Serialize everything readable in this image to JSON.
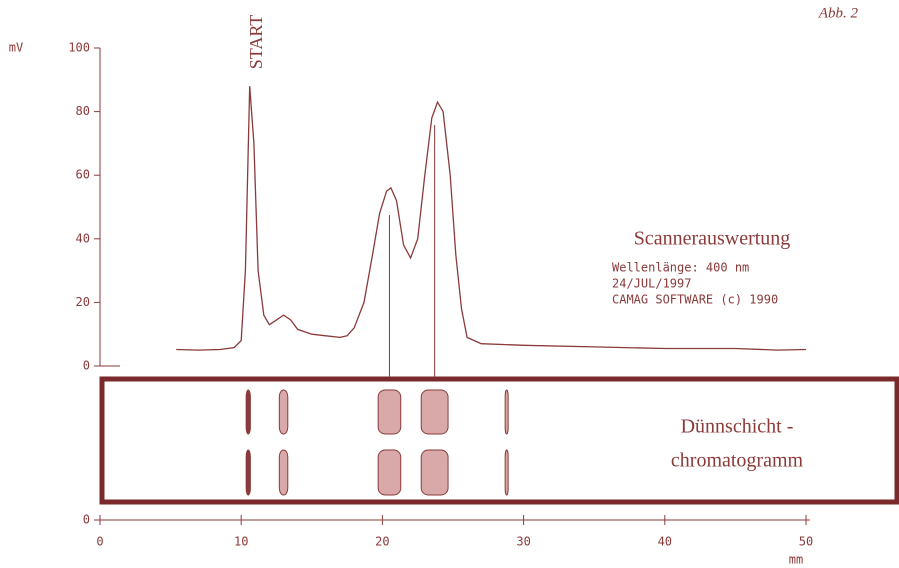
{
  "chart_data": {
    "type": "line",
    "figure_label": "Abb. 2",
    "start_label": "START",
    "title": "Scannerauswertung",
    "info_lines": [
      "Wellenlänge: 400 nm",
      "24/JUL/1997",
      "CAMAG SOFTWARE (c) 1990"
    ],
    "plate_label": [
      "Dünnschicht -",
      "chromatogramm"
    ],
    "y_label": "mV",
    "x_label": "mm",
    "color": "#8b3a3a",
    "x": [
      5.4,
      7,
      8.5,
      9.5,
      10,
      10.3,
      10.6,
      10.9,
      11.2,
      11.6,
      12,
      12.5,
      13,
      13.5,
      14,
      15,
      16,
      17,
      17.5,
      18,
      18.7,
      19.3,
      19.8,
      20.3,
      20.6,
      21,
      21.5,
      22,
      22.5,
      23,
      23.5,
      23.9,
      24.3,
      24.8,
      25.2,
      25.6,
      26,
      27,
      30,
      35,
      40,
      45,
      48,
      50
    ],
    "values": [
      5.2,
      5,
      5.2,
      5.8,
      8,
      30,
      88,
      70,
      30,
      16,
      13,
      14.5,
      16,
      14.5,
      11.5,
      10,
      9.5,
      9,
      9.5,
      12,
      20,
      35,
      48,
      55,
      56,
      52,
      38,
      34,
      40,
      60,
      78,
      83,
      80,
      60,
      35,
      18,
      9,
      7,
      6.5,
      6,
      5.5,
      5.5,
      5,
      5.2
    ],
    "xlim": [
      0,
      50
    ],
    "xticks": [
      0,
      10,
      20,
      30,
      40,
      50
    ],
    "ylim": [
      0,
      100
    ],
    "yticks": [
      0,
      20,
      40,
      60,
      80,
      100
    ],
    "plate_axis_zero": 0,
    "spot_color": "#d9a9a9",
    "start_spot_color": "#8b3a3a",
    "spots": [
      {
        "x": 10.5,
        "width": 0.3
      },
      {
        "x": 13,
        "width": 0.6
      },
      {
        "x": 20.5,
        "width": 1.6
      },
      {
        "x": 23.7,
        "width": 1.9
      },
      {
        "x": 28.8,
        "width": 0.2
      }
    ]
  }
}
